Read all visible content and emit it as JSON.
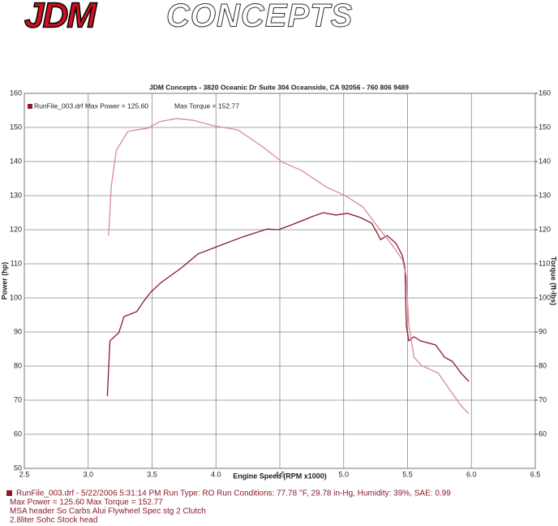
{
  "logo": {
    "brand": "JDM",
    "word": "CONCEPTS"
  },
  "chart_data": {
    "type": "line",
    "title": "JDM Concepts - 3820 Oceanic Dr Suite 304 Oceanside, CA 92056 - 760 806 9489",
    "legend_text": "RunFile_003.drf Max Power = 125.60",
    "legend_text2": "Max Torque = 152.77",
    "x_label": "Engine Speed (RPM x1000)",
    "y_label": "Power (hp)",
    "y2_label": "Torque (ft-lbs)",
    "xlim": [
      2.5,
      6.5
    ],
    "xticks": [
      2.5,
      {
        "value": 3,
        "label": "3.0"
      },
      3.5,
      {
        "value": 4,
        "label": "4.0"
      },
      4.5,
      {
        "value": 5,
        "label": "5.0"
      },
      5.5,
      {
        "value": 6,
        "label": "6.0"
      },
      6.5
    ],
    "ylim": [
      50,
      160
    ],
    "yticks": [
      50,
      60,
      70,
      80,
      90,
      100,
      110,
      120,
      130,
      140,
      150,
      160
    ],
    "y2lim": [
      50,
      160
    ],
    "y2ticks": [
      60,
      70,
      80,
      90,
      100,
      110,
      120,
      130,
      140,
      150,
      160
    ],
    "grid": true,
    "series": [
      {
        "color": "#8b1a2a",
        "x": [
          3.15,
          3.17,
          3.24,
          3.28,
          3.38,
          3.44,
          3.49,
          3.57,
          3.73,
          3.86,
          4.02,
          4.21,
          4.4,
          4.49,
          4.59,
          4.75,
          4.84,
          4.94,
          5.03,
          5.13,
          5.22,
          5.29,
          5.34,
          5.41,
          5.46,
          5.48,
          5.49,
          5.51,
          5.55,
          5.6,
          5.72,
          5.79,
          5.85,
          5.92,
          5.98
        ],
        "values": [
          71.2,
          87.4,
          89.8,
          94.5,
          96,
          99.3,
          101.7,
          104.5,
          108.8,
          112.9,
          115.2,
          117.9,
          120.2,
          120,
          121.4,
          123.8,
          125,
          124.3,
          124.8,
          123.6,
          121.9,
          117.1,
          118.3,
          116,
          112.4,
          108.8,
          92.1,
          87.4,
          88.6,
          87.4,
          86.2,
          82.6,
          81.4,
          77.9,
          75.5
        ]
      },
      {
        "color": "#d88a98",
        "axis": "y2",
        "x": [
          3.16,
          3.18,
          3.22,
          3.31,
          3.38,
          3.47,
          3.56,
          3.69,
          3.82,
          3.98,
          4.17,
          4.36,
          4.52,
          4.67,
          4.86,
          5.02,
          5.15,
          5.27,
          5.37,
          5.46,
          5.49,
          5.51,
          5.55,
          5.61,
          5.74,
          5.83,
          5.92,
          5.98
        ],
        "values": [
          118.3,
          132.6,
          143.3,
          148.8,
          149.3,
          149.8,
          151.7,
          152.6,
          152.1,
          150.5,
          149.3,
          144.5,
          139.8,
          137.4,
          132.6,
          129.8,
          126.7,
          120.7,
          116,
          111.2,
          106.4,
          92.1,
          82.6,
          80.2,
          77.9,
          73.1,
          68.3,
          66
        ]
      }
    ],
    "footer": [
      "RunFile_003.drf - 5/22/2006 5:31:14 PM  Run Type: RO  Run Conditions: 77.78 °F, 29.78 in-Hg,  Humidity:  39%, SAE: 0.99",
      "Max Power = 125.60  Max Torque = 152.77",
      "MSA header So Carbs Alui Flywheel Spec stg 2 Clutch",
      "2.8liter   Sohc   Stock head"
    ]
  }
}
